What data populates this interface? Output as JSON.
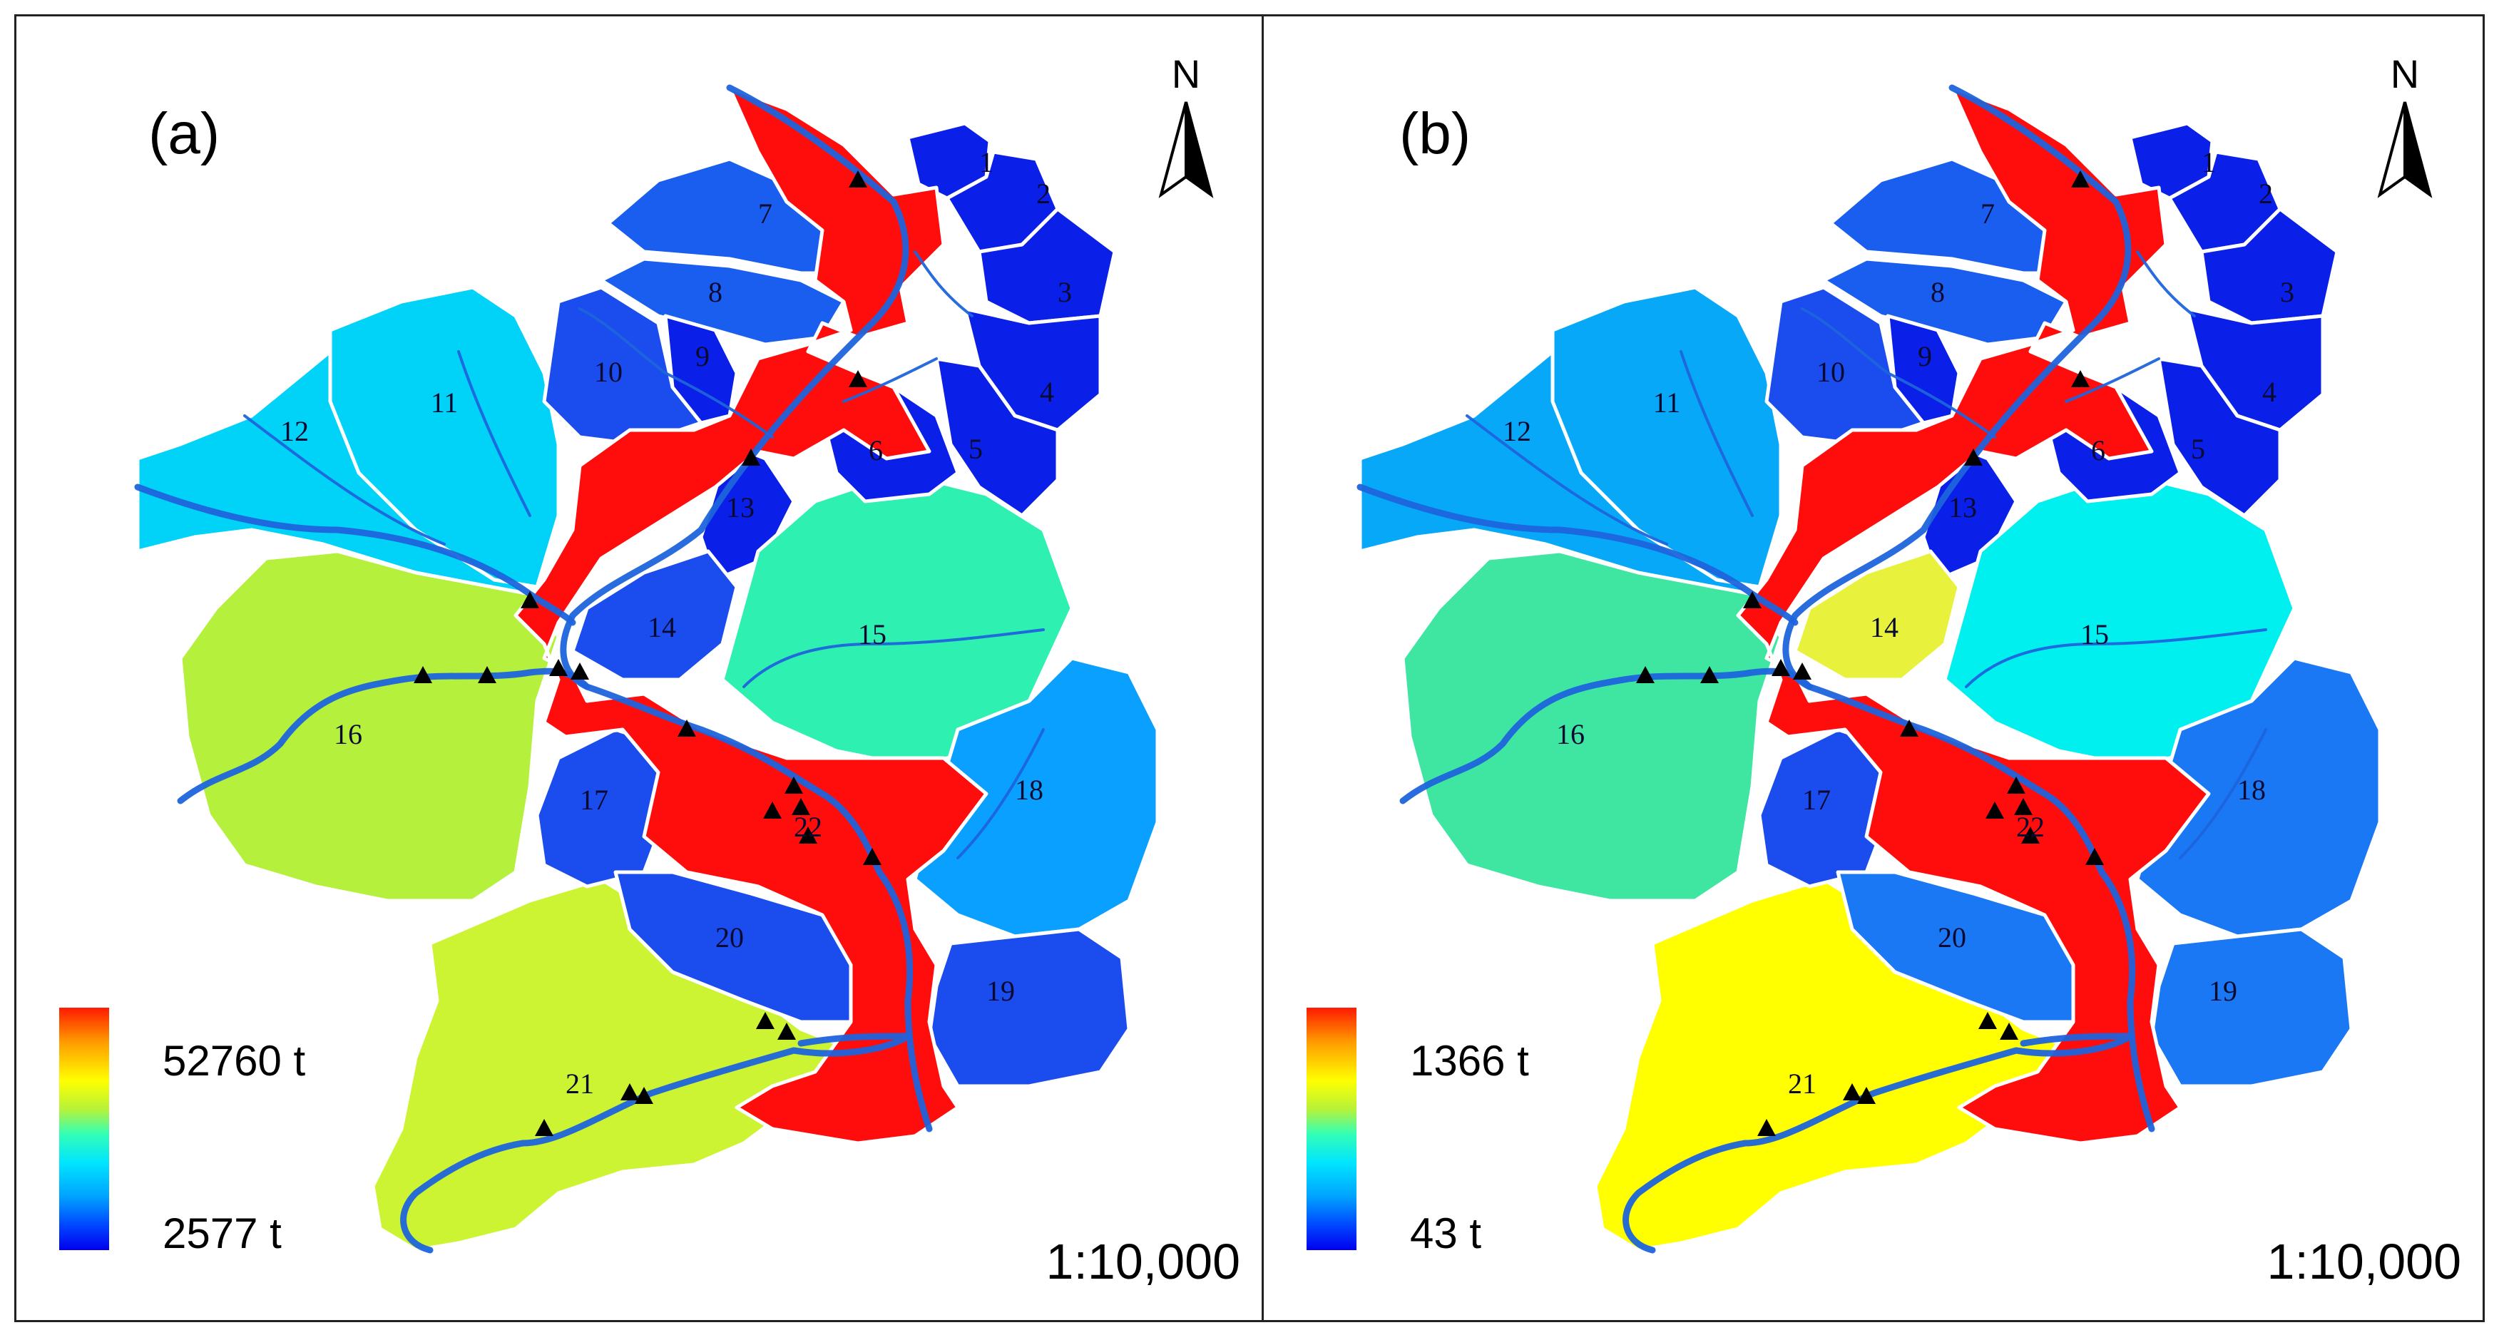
{
  "panels": [
    {
      "id": "a",
      "label": "(a)",
      "legend_max": "52760 t",
      "legend_min": "2577 t",
      "scale": "1:10,000",
      "north": "N",
      "subbasins": [
        {
          "id": "1",
          "color": "#0a1fe8"
        },
        {
          "id": "2",
          "color": "#0a1fe8"
        },
        {
          "id": "3",
          "color": "#0a1fe8"
        },
        {
          "id": "4",
          "color": "#0a1fe8"
        },
        {
          "id": "5",
          "color": "#0a1fe8"
        },
        {
          "id": "6",
          "color": "#0a1fe8"
        },
        {
          "id": "7",
          "color": "#1a5ef0"
        },
        {
          "id": "8",
          "color": "#1a5ef0"
        },
        {
          "id": "9",
          "color": "#0a1fe8"
        },
        {
          "id": "10",
          "color": "#1a4cee"
        },
        {
          "id": "11",
          "color": "#00d2f8"
        },
        {
          "id": "12",
          "color": "#00d2f8"
        },
        {
          "id": "13",
          "color": "#0a1fe8"
        },
        {
          "id": "14",
          "color": "#1a4cee"
        },
        {
          "id": "15",
          "color": "#2ef0b0"
        },
        {
          "id": "16",
          "color": "#b4f03c"
        },
        {
          "id": "17",
          "color": "#1a4cee"
        },
        {
          "id": "18",
          "color": "#0aa0ff"
        },
        {
          "id": "19",
          "color": "#1a4cee"
        },
        {
          "id": "20",
          "color": "#1a4cee"
        },
        {
          "id": "21",
          "color": "#ccf432"
        },
        {
          "id": "22",
          "color": "#ff0d0d"
        }
      ]
    },
    {
      "id": "b",
      "label": "(b)",
      "legend_max": "1366 t",
      "legend_min": "43 t",
      "scale": "1:10,000",
      "north": "N",
      "subbasins": [
        {
          "id": "1",
          "color": "#0a1fe8"
        },
        {
          "id": "2",
          "color": "#0a1fe8"
        },
        {
          "id": "3",
          "color": "#0a1fe8"
        },
        {
          "id": "4",
          "color": "#0a1fe8"
        },
        {
          "id": "5",
          "color": "#0a1fe8"
        },
        {
          "id": "6",
          "color": "#0a1fe8"
        },
        {
          "id": "7",
          "color": "#1a5ef0"
        },
        {
          "id": "8",
          "color": "#1a5ef0"
        },
        {
          "id": "9",
          "color": "#0a1fe8"
        },
        {
          "id": "10",
          "color": "#1a4cee"
        },
        {
          "id": "11",
          "color": "#08a8f8"
        },
        {
          "id": "12",
          "color": "#08a8f8"
        },
        {
          "id": "13",
          "color": "#0a1fe8"
        },
        {
          "id": "14",
          "color": "#e8f23c"
        },
        {
          "id": "15",
          "color": "#00f0f0"
        },
        {
          "id": "16",
          "color": "#3ee6a2"
        },
        {
          "id": "17",
          "color": "#1a4cee"
        },
        {
          "id": "18",
          "color": "#1a78f4"
        },
        {
          "id": "19",
          "color": "#1a78f4"
        },
        {
          "id": "20",
          "color": "#1a78f4"
        },
        {
          "id": "21",
          "color": "#ffff00"
        },
        {
          "id": "22",
          "color": "#ff0d0d"
        }
      ]
    }
  ],
  "colors": {
    "high_red": "#ff0d0d",
    "river": "#1e64dc",
    "boundary": "#ffffff",
    "station": "#000000"
  }
}
